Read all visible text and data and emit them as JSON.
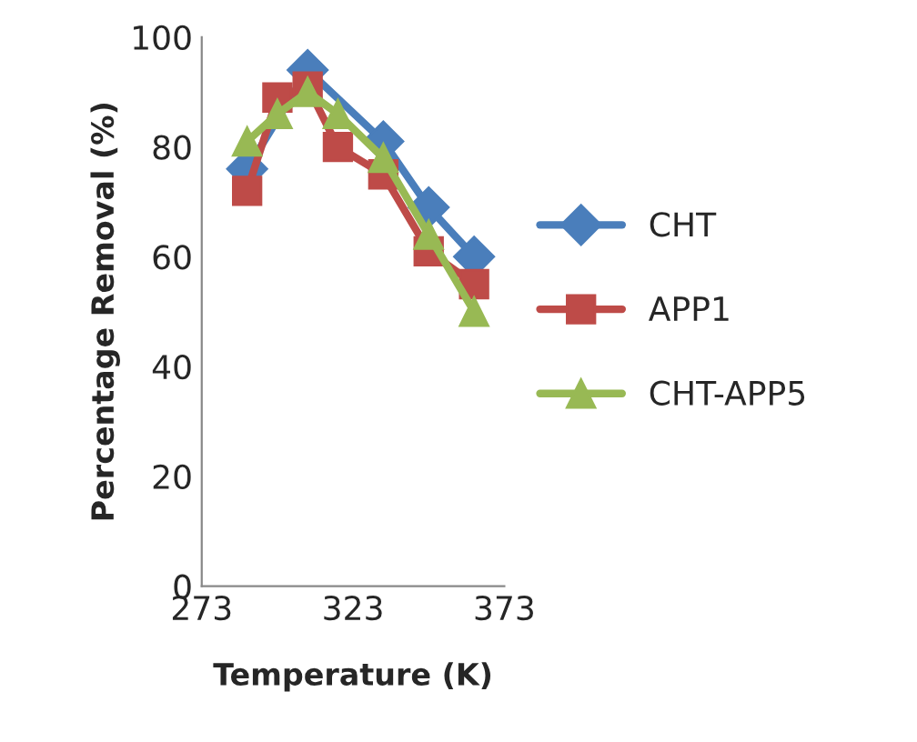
{
  "chart_data": {
    "type": "line",
    "xlabel": "Temperature (K)",
    "ylabel": "Percentage Removal (%)",
    "x": [
      288,
      298,
      308,
      318,
      333,
      348,
      363
    ],
    "series": [
      {
        "name": "CHT",
        "color": "#4a7ebb",
        "marker": "diamond",
        "values": [
          76,
          null,
          94,
          null,
          81,
          69,
          60
        ]
      },
      {
        "name": "APP1",
        "color": "#be4b48",
        "marker": "square",
        "values": [
          72,
          89,
          91,
          80,
          75,
          61,
          55
        ]
      },
      {
        "name": "CHT-APP5",
        "color": "#98b954",
        "marker": "triangle",
        "values": [
          81,
          86,
          90,
          86,
          78,
          64,
          50
        ]
      }
    ],
    "xlim": [
      273,
      373
    ],
    "xticks": [
      273,
      323,
      373
    ],
    "ylim": [
      0,
      100
    ],
    "yticks": [
      0,
      20,
      40,
      60,
      80,
      100
    ],
    "grid": false,
    "legend": "right"
  }
}
